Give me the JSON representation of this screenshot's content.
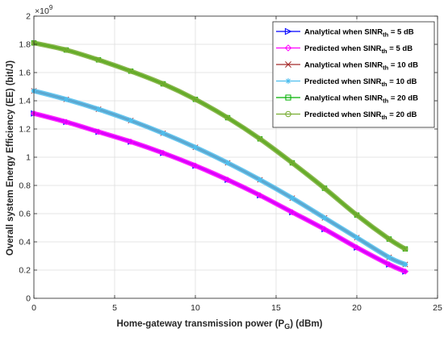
{
  "chart_data": {
    "type": "line",
    "xlabel": "Home-gateway transmission power (P",
    "xlabel_sub": "G",
    "xlabel_suffix": ") (dBm)",
    "ylabel": "Overall system Energy Efficiency (EE) (bit/J)",
    "y_multiplier": "×10",
    "y_multiplier_exp": "9",
    "xlim": [
      0,
      25
    ],
    "ylim": [
      0,
      2
    ],
    "x_ticks": [
      0,
      5,
      10,
      15,
      20,
      25
    ],
    "y_ticks": [
      0,
      0.2,
      0.4,
      0.6,
      0.8,
      1,
      1.2,
      1.4,
      1.6,
      1.8,
      2
    ],
    "grid": true,
    "legend_position": "top-right",
    "x": [
      0,
      2,
      4,
      6,
      8,
      10,
      12,
      14,
      16,
      18,
      20,
      22,
      23
    ],
    "series": [
      {
        "name": "Analytical when SINR",
        "name_sub": "th",
        "name_suffix": " = 5 dB",
        "color": "#0000ff",
        "marker": "triangle-right",
        "values": [
          1.31,
          1.25,
          1.18,
          1.11,
          1.03,
          0.94,
          0.84,
          0.73,
          0.61,
          0.49,
          0.36,
          0.24,
          0.19
        ]
      },
      {
        "name": "Predicted when SINR",
        "name_sub": "th",
        "name_suffix": " = 5 dB",
        "color": "#ff00ff",
        "marker": "diamond",
        "values": [
          1.31,
          1.25,
          1.18,
          1.11,
          1.03,
          0.94,
          0.84,
          0.73,
          0.61,
          0.49,
          0.36,
          0.24,
          0.19
        ]
      },
      {
        "name": "Analytical when SINR",
        "name_sub": "th",
        "name_suffix": " = 10 dB",
        "color": "#a52a2a",
        "marker": "x",
        "values": [
          1.47,
          1.41,
          1.34,
          1.26,
          1.17,
          1.07,
          0.96,
          0.84,
          0.71,
          0.57,
          0.43,
          0.29,
          0.24
        ]
      },
      {
        "name": "Predicted when SINR",
        "name_sub": "th",
        "name_suffix": " = 10 dB",
        "color": "#4dbeee",
        "marker": "star",
        "values": [
          1.47,
          1.41,
          1.34,
          1.26,
          1.17,
          1.07,
          0.96,
          0.84,
          0.71,
          0.57,
          0.43,
          0.29,
          0.24
        ]
      },
      {
        "name": "Analytical when SINR",
        "name_sub": "th",
        "name_suffix": " = 20 dB",
        "color": "#00b000",
        "marker": "square",
        "values": [
          1.81,
          1.76,
          1.69,
          1.61,
          1.52,
          1.41,
          1.28,
          1.13,
          0.96,
          0.78,
          0.59,
          0.42,
          0.35
        ]
      },
      {
        "name": "Predicted when SINR",
        "name_sub": "th",
        "name_suffix": " = 20 dB",
        "color": "#77ac30",
        "marker": "circle",
        "values": [
          1.81,
          1.76,
          1.69,
          1.61,
          1.52,
          1.41,
          1.28,
          1.13,
          0.96,
          0.78,
          0.59,
          0.42,
          0.35
        ]
      }
    ]
  }
}
